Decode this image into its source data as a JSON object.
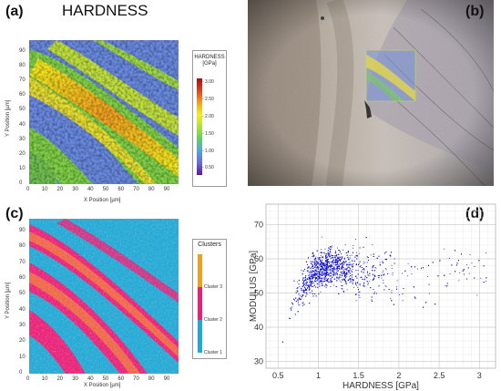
{
  "panels": {
    "a": {
      "letter": "(a)",
      "title": "HARDNESS",
      "xlabel": "X Position [µm]",
      "ylabel": "Y Position [µm]",
      "xticks": [
        "0",
        "10",
        "20",
        "30",
        "40",
        "50",
        "60",
        "70",
        "80",
        "90"
      ],
      "yticks": [
        "0",
        "10",
        "20",
        "30",
        "40",
        "50",
        "60",
        "70",
        "80",
        "90"
      ],
      "legend_title": "HARDNESS\n[GPa]",
      "legend_ticks": [
        "3.00",
        "2.50",
        "2.00",
        "1.50",
        "1.00",
        "0.50"
      ]
    },
    "b": {
      "letter": "(b)"
    },
    "c": {
      "letter": "(c)",
      "xlabel": "X Position [µm]",
      "ylabel": "Y Position [µm]",
      "xticks": [
        "0",
        "10",
        "20",
        "30",
        "40",
        "50",
        "60",
        "70",
        "80",
        "90"
      ],
      "yticks": [
        "0",
        "10",
        "20",
        "30",
        "40",
        "50",
        "60",
        "70",
        "80",
        "90"
      ],
      "legend_title": "Clusters",
      "legend_items": [
        "Cluster 3",
        "Cluster 2",
        "Cluster 1"
      ],
      "cluster_colors": [
        "#f0a020",
        "#e8207a",
        "#20a8d8"
      ]
    },
    "d": {
      "letter": "(d)"
    }
  },
  "colors": {
    "hardness_scale": [
      "#5a1a9a",
      "#6a6ad8",
      "#5aa0e0",
      "#60d060",
      "#b0e040",
      "#f0f020",
      "#f0a020",
      "#e04020",
      "#a01010"
    ]
  },
  "chart_data": {
    "type": "scatter",
    "xlabel": "HARDNESS [GPa]",
    "ylabel": "MODULUS [GPa]",
    "xlim": [
      0.35,
      3.2
    ],
    "ylim": [
      28,
      76
    ],
    "xticks": [
      0.5,
      1,
      1.5,
      2,
      2.5,
      3
    ],
    "xtick_labels": [
      "0.5",
      "1",
      "1.5",
      "2",
      "2.5",
      "3"
    ],
    "yticks": [
      30,
      40,
      50,
      60,
      70
    ],
    "ytick_labels": [
      "30",
      "40",
      "50",
      "60",
      "70"
    ],
    "grid": true,
    "marker_color": "#1515d0",
    "series": [
      {
        "x": [
          0.45,
          0.55,
          0.6,
          0.65,
          0.7,
          0.75,
          0.8,
          0.85,
          0.9,
          0.95,
          1.0,
          1.05,
          1.1,
          1.15,
          1.2,
          1.3,
          1.4,
          1.5,
          1.6,
          1.7,
          1.8,
          2.0,
          2.2,
          2.5,
          2.8,
          3.0
        ],
        "y": [
          37,
          41,
          43,
          45,
          47,
          49,
          51,
          53,
          55,
          56,
          57,
          57,
          58,
          58,
          58,
          57,
          57,
          56,
          56,
          55,
          55,
          54,
          55,
          55,
          57,
          57
        ]
      }
    ]
  }
}
